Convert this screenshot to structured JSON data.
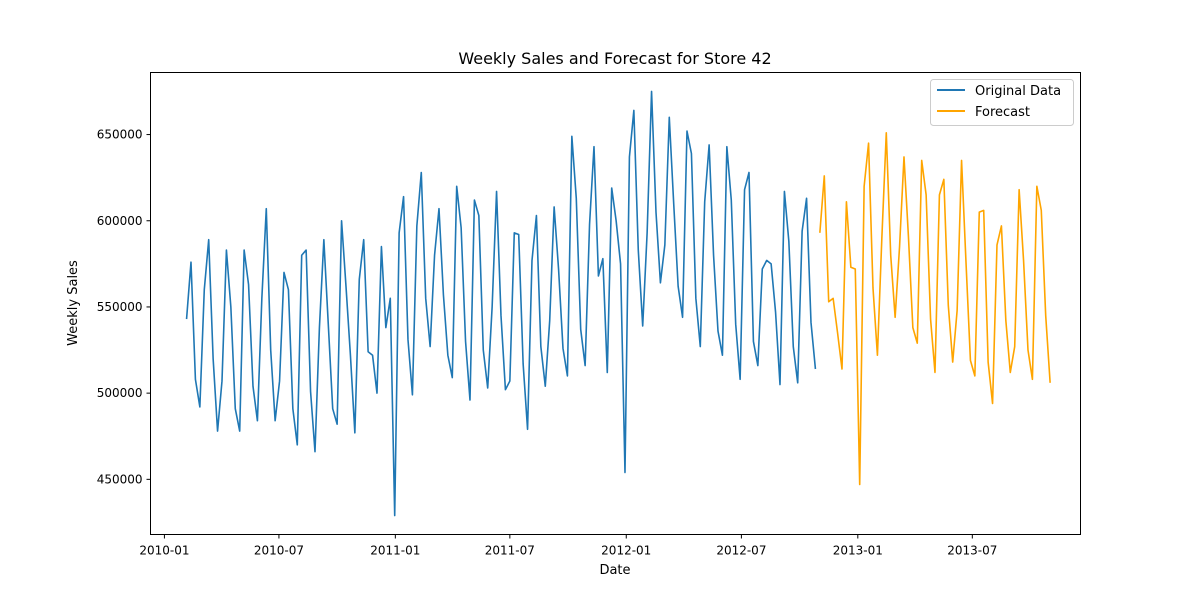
{
  "chart_data": {
    "type": "line",
    "title": "Weekly Sales and Forecast for Store 42",
    "xlabel": "Date",
    "ylabel": "Weekly Sales",
    "x_ticks": [
      "2010-01",
      "2010-07",
      "2011-01",
      "2011-07",
      "2012-01",
      "2012-07",
      "2013-01",
      "2013-07"
    ],
    "y_ticks": [
      450000,
      500000,
      550000,
      600000,
      650000
    ],
    "xlim": [
      "2009-12-10",
      "2013-12-19"
    ],
    "ylim": [
      418000,
      686000
    ],
    "grid": false,
    "legend": "top-right",
    "colors": {
      "original": "#1f77b4",
      "forecast": "#ffa500",
      "axes": "#000000"
    },
    "series": [
      {
        "name": "Original Data",
        "start": "2010-02-05",
        "interval_days": 7,
        "values": [
          543000,
          576000,
          508000,
          492000,
          560000,
          589000,
          520000,
          478000,
          507000,
          583000,
          550000,
          491000,
          478000,
          583000,
          563000,
          504000,
          484000,
          555000,
          607000,
          525000,
          484000,
          507000,
          570000,
          560000,
          491000,
          470000,
          580000,
          583000,
          501000,
          466000,
          538000,
          589000,
          540000,
          491000,
          482000,
          600000,
          562000,
          522000,
          477000,
          566000,
          589000,
          524000,
          522000,
          500000,
          585000,
          538000,
          555000,
          429000,
          593000,
          614000,
          531000,
          499000,
          597000,
          628000,
          555000,
          527000,
          580000,
          607000,
          557000,
          522000,
          509000,
          620000,
          596000,
          530000,
          496000,
          612000,
          603000,
          525000,
          503000,
          550000,
          617000,
          545000,
          502000,
          507000,
          593000,
          592000,
          517000,
          479000,
          577000,
          603000,
          527000,
          504000,
          542000,
          608000,
          572000,
          526000,
          510000,
          649000,
          613000,
          537000,
          516000,
          598000,
          643000,
          568000,
          578000,
          512000,
          619000,
          600000,
          575000,
          454000,
          637000,
          664000,
          583000,
          539000,
          593000,
          675000,
          605000,
          564000,
          586000,
          660000,
          610000,
          562000,
          544000,
          652000,
          639000,
          555000,
          527000,
          611000,
          644000,
          580000,
          536000,
          522000,
          643000,
          612000,
          540000,
          508000,
          618000,
          628000,
          530000,
          516000,
          572000,
          577000,
          575000,
          547000,
          505000,
          617000,
          588000,
          527000,
          506000,
          594000,
          613000,
          541000,
          514000
        ]
      },
      {
        "name": "Forecast",
        "start": "2012-11-02",
        "interval_days": 7,
        "values": [
          593000,
          626000,
          553000,
          555000,
          535000,
          514000,
          611000,
          573000,
          572000,
          447000,
          620000,
          645000,
          561000,
          522000,
          590000,
          651000,
          580000,
          544000,
          585000,
          637000,
          591000,
          538000,
          529000,
          635000,
          615000,
          543000,
          512000,
          615000,
          624000,
          551000,
          518000,
          548000,
          635000,
          576000,
          519000,
          510000,
          605000,
          606000,
          518000,
          494000,
          586000,
          597000,
          542000,
          512000,
          527000,
          618000,
          577000,
          525000,
          508000,
          620000,
          606000,
          545000,
          506000
        ]
      }
    ]
  }
}
